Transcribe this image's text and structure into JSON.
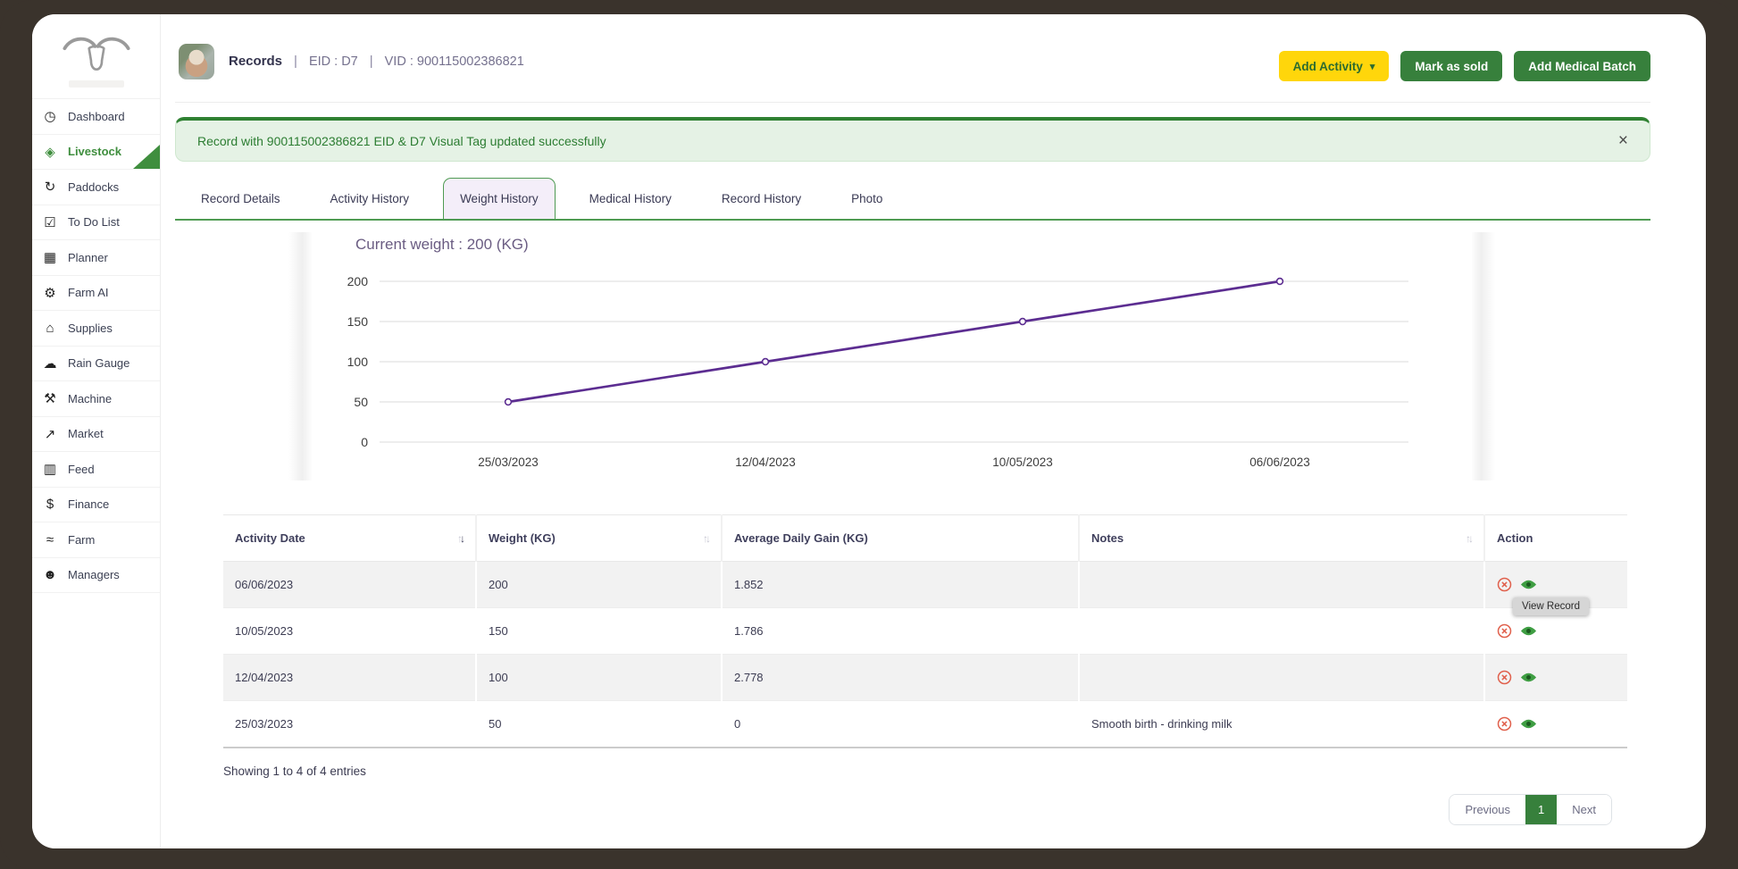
{
  "header": {
    "title": "Records",
    "separator": "|",
    "eid_label": "EID : D7",
    "vid_label": "VID : 900115002386821",
    "caret": "▾",
    "buttons": {
      "add_activity": "Add Activity",
      "mark_as_sold": "Mark as sold",
      "add_medical_batch": "Add Medical Batch"
    }
  },
  "sidebar": {
    "items": [
      {
        "label": "Dashboard",
        "icon": "dashboard-icon",
        "glyph": "◷"
      },
      {
        "label": "Livestock",
        "icon": "livestock-icon",
        "glyph": "◈",
        "active": true
      },
      {
        "label": "Paddocks",
        "icon": "paddocks-icon",
        "glyph": "↻"
      },
      {
        "label": "To Do List",
        "icon": "todo-list-icon",
        "glyph": "☑"
      },
      {
        "label": "Planner",
        "icon": "planner-icon",
        "glyph": "▦"
      },
      {
        "label": "Farm AI",
        "icon": "farm-ai-icon",
        "glyph": "⚙"
      },
      {
        "label": "Supplies",
        "icon": "supplies-icon",
        "glyph": "⌂"
      },
      {
        "label": "Rain Gauge",
        "icon": "rain-gauge-icon",
        "glyph": "☁"
      },
      {
        "label": "Machine",
        "icon": "machine-icon",
        "glyph": "⚒"
      },
      {
        "label": "Market",
        "icon": "market-icon",
        "glyph": "↗"
      },
      {
        "label": "Feed",
        "icon": "feed-icon",
        "glyph": "▥"
      },
      {
        "label": "Finance",
        "icon": "finance-icon",
        "glyph": "$"
      },
      {
        "label": "Farm",
        "icon": "farm-icon",
        "glyph": "≈"
      },
      {
        "label": "Managers",
        "icon": "managers-icon",
        "glyph": "☻"
      }
    ]
  },
  "alert": {
    "message": "Record with 900115002386821 EID & D7 Visual Tag updated successfully",
    "close": "×"
  },
  "tabs": [
    {
      "label": "Record Details"
    },
    {
      "label": "Activity History"
    },
    {
      "label": "Weight History",
      "active": true
    },
    {
      "label": "Medical History"
    },
    {
      "label": "Record History"
    },
    {
      "label": "Photo"
    }
  ],
  "chart_data": {
    "type": "line",
    "title": "Current weight : 200 (KG)",
    "categories": [
      "25/03/2023",
      "12/04/2023",
      "10/05/2023",
      "06/06/2023"
    ],
    "series": [
      {
        "name": "Weight (KG)",
        "values": [
          50,
          100,
          150,
          200
        ]
      }
    ],
    "xlabel": "",
    "ylabel": "",
    "ylim": [
      0,
      200
    ],
    "yticks": [
      0,
      50,
      100,
      150,
      200
    ],
    "grid": true,
    "legend_position": "none",
    "line_color": "#5c2d91"
  },
  "table": {
    "columns": [
      {
        "label": "Activity Date",
        "sort": "desc"
      },
      {
        "label": "Weight (KG)",
        "sort": "none"
      },
      {
        "label": "Average Daily Gain (KG)",
        "sort": null
      },
      {
        "label": "Notes",
        "sort": "none"
      },
      {
        "label": "Action",
        "sort": null
      }
    ],
    "rows": [
      {
        "date": "06/06/2023",
        "weight": "200",
        "adg": "1.852",
        "notes": ""
      },
      {
        "date": "10/05/2023",
        "weight": "150",
        "adg": "1.786",
        "notes": ""
      },
      {
        "date": "12/04/2023",
        "weight": "100",
        "adg": "2.778",
        "notes": ""
      },
      {
        "date": "25/03/2023",
        "weight": "50",
        "adg": "0",
        "notes": "Smooth birth - drinking milk"
      }
    ],
    "summary": "Showing 1 to 4 of 4 entries"
  },
  "tooltip": {
    "text": "View Record"
  },
  "pagination": {
    "previous": "Previous",
    "page": "1",
    "next": "Next"
  },
  "colors": {
    "accent_green": "#37803c",
    "accent_yellow": "#ffd60b",
    "active_nav_green": "#3f8e3e",
    "alert_text_green": "#2c7d32",
    "chart_line_purple": "#5c2d91",
    "frame_brown": "#3a332c"
  }
}
